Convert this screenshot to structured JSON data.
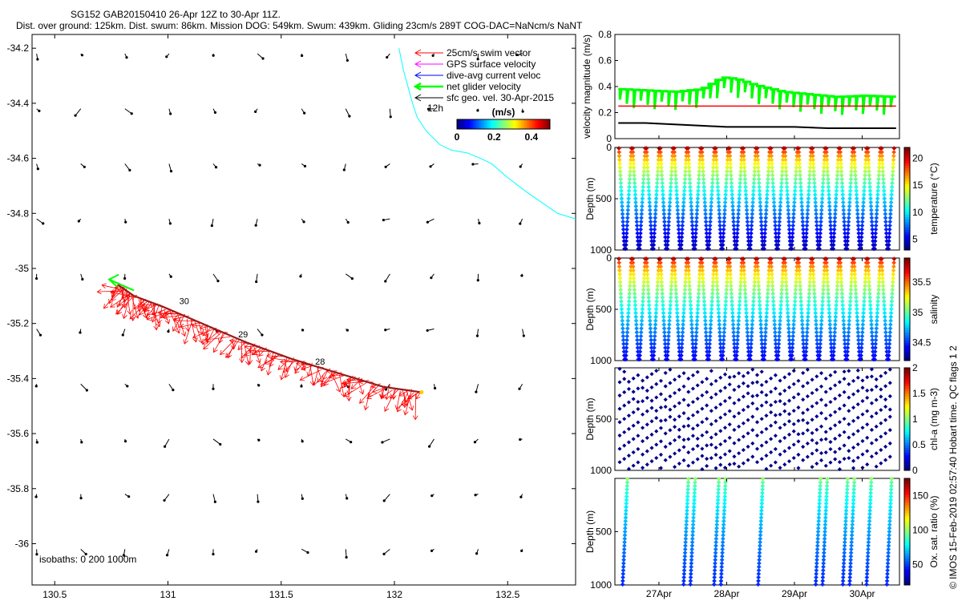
{
  "header": {
    "line1": "SG152 GAB20150410 26-Apr 12Z to 30-Apr 11Z.",
    "line2": "Dist. over ground: 125km. Dist. swum: 86km. Mission DOG: 549km. Swum: 439km. Gliding 23cm/s 289T COG-DAC=NaNcm/s NaNT"
  },
  "credit": "© IMOS 15-Feb-2019 02:57:40 Hobart time. QC flags 1  2",
  "colors": {
    "swim": "#ff0000",
    "gps": "#ff00ff",
    "dive_avg": "#0000ff",
    "net": "#00ff00",
    "sfc": "#000000",
    "coast": "#00ffff",
    "track": "#cc0000"
  },
  "chart_data": [
    {
      "type": "scatter",
      "name": "map",
      "xlim": [
        130.4,
        132.8
      ],
      "ylim": [
        -36.15,
        -34.15
      ],
      "xticks": [
        130.5,
        131,
        131.5,
        132,
        132.5
      ],
      "xtick_labels": [
        "130.5",
        "131",
        "131.5",
        "132",
        "132.5"
      ],
      "yticks": [
        -34.2,
        -34.4,
        -34.6,
        -34.8,
        -35,
        -35.2,
        -35.4,
        -35.6,
        -35.8,
        -36
      ],
      "ytick_labels": [
        "-34.2",
        "-34.4",
        "-34.6",
        "-34.8",
        "-35",
        "-35.2",
        "-35.4",
        "-35.6",
        "-35.8",
        "-36"
      ],
      "legend": [
        {
          "label": "25cm/s swim vector",
          "color_key": "swim"
        },
        {
          "label": "GPS surface velocity",
          "color_key": "gps"
        },
        {
          "label": "dive-avg current veloc",
          "color_key": "dive_avg"
        },
        {
          "label": "net glider velocity",
          "color_key": "net"
        },
        {
          "label": "sfc geo. vel. 30-Apr-2015",
          "color_key": "sfc"
        }
      ],
      "legend_position": "top-right",
      "legend_note": "12h",
      "colorbar": {
        "title": "(m/s)",
        "ticks": [
          0,
          0.2,
          0.4
        ],
        "tick_labels": [
          "0",
          "0.2",
          "0.4"
        ],
        "range": [
          0,
          0.5
        ]
      },
      "isobaths_label": "isobaths: 0   200  1000m",
      "day_labels": [
        "30",
        "29",
        "28"
      ],
      "track": {
        "lon": [
          132.12,
          131.95,
          131.75,
          131.55,
          131.35,
          131.15,
          130.98,
          130.85,
          130.78
        ],
        "lat": [
          -35.45,
          -35.43,
          -35.38,
          -35.33,
          -35.27,
          -35.2,
          -35.14,
          -35.1,
          -35.06
        ]
      },
      "net_vector": {
        "lon": [
          130.85,
          130.74
        ],
        "lat": [
          -35.08,
          -35.04
        ]
      },
      "coast": {
        "lon": [
          132.02,
          132.04,
          132.06,
          132.08,
          132.1,
          132.14,
          132.2,
          132.25,
          132.32,
          132.38,
          132.43,
          132.5,
          132.58,
          132.65,
          132.72,
          132.8
        ],
        "lat": [
          -34.2,
          -34.28,
          -34.34,
          -34.4,
          -34.45,
          -34.5,
          -34.55,
          -34.57,
          -34.58,
          -34.6,
          -34.62,
          -34.67,
          -34.72,
          -34.76,
          -34.8,
          -34.82
        ]
      }
    },
    {
      "type": "line",
      "name": "velocity",
      "ylabel": "velocity magnitude (m/s)",
      "xlim": [
        26.35,
        30.55
      ],
      "ylim": [
        0,
        0.8
      ],
      "yticks": [
        0,
        0.2,
        0.4,
        0.6,
        0.8
      ],
      "ytick_labels": [
        "0",
        "0.2",
        "0.4",
        "0.6",
        "0.8"
      ],
      "series": [
        {
          "name": "glider speed",
          "color_key": "net",
          "x": [
            26.4,
            26.8,
            27.2,
            27.6,
            27.9,
            28.1,
            28.4,
            28.8,
            29.2,
            29.6,
            30.0,
            30.5
          ],
          "values": [
            0.38,
            0.37,
            0.36,
            0.38,
            0.47,
            0.46,
            0.41,
            0.36,
            0.34,
            0.32,
            0.33,
            0.32
          ]
        },
        {
          "name": "swim",
          "color_key": "swim",
          "x": [
            26.4,
            30.5
          ],
          "values": [
            0.25,
            0.25
          ]
        },
        {
          "name": "current",
          "color_key": "sfc",
          "x": [
            26.4,
            26.8,
            27.2,
            27.6,
            28.0,
            28.5,
            29.0,
            29.5,
            30.0,
            30.5
          ],
          "values": [
            0.12,
            0.12,
            0.11,
            0.1,
            0.09,
            0.09,
            0.09,
            0.08,
            0.08,
            0.08
          ]
        }
      ]
    },
    {
      "type": "heatmap",
      "name": "temperature",
      "ylabel": "Depth (m)",
      "clabel": "temperature (°C)",
      "ylim": [
        0,
        1000
      ],
      "yticks": [
        0,
        500,
        1000
      ],
      "ytick_labels": [
        "0",
        "500",
        "1000"
      ],
      "crange": [
        3,
        22
      ],
      "cticks": [
        5,
        10,
        15,
        20
      ],
      "ctick_labels": [
        "5",
        "10",
        "15",
        "20"
      ],
      "surface_value": 21,
      "bottom_value": 4
    },
    {
      "type": "heatmap",
      "name": "salinity",
      "ylabel": "Depth (m)",
      "clabel": "salinity",
      "ylim": [
        0,
        1000
      ],
      "yticks": [
        0,
        500,
        1000
      ],
      "ytick_labels": [
        "0",
        "500",
        "1000"
      ],
      "crange": [
        34.2,
        35.9
      ],
      "cticks": [
        34.5,
        35,
        35.5
      ],
      "ctick_labels": [
        "34.5",
        "35",
        "35.5"
      ],
      "surface_value": 35.8,
      "bottom_value": 34.4
    },
    {
      "type": "scatter",
      "name": "chla",
      "ylabel": "Depth (m)",
      "clabel": "chl-a (mg m-3)",
      "ylim": [
        0,
        1000
      ],
      "yticks": [
        500,
        1000
      ],
      "ytick_labels": [
        "500",
        "1000"
      ],
      "crange": [
        0,
        2
      ],
      "cticks": [
        0,
        0.5,
        1,
        1.5,
        2
      ],
      "ctick_labels": [
        "0",
        "0.5",
        "1",
        "1.5",
        "2"
      ],
      "value": 0.02
    },
    {
      "type": "scatter",
      "name": "oxygen",
      "ylabel": "Depth (m)",
      "clabel": "Ox. sat. ratio (%)",
      "ylim": [
        0,
        1000
      ],
      "yticks": [
        500,
        1000
      ],
      "ytick_labels": [
        "500",
        "1000"
      ],
      "crange": [
        20,
        175
      ],
      "cticks": [
        50,
        100,
        150
      ],
      "ctick_labels": [
        "50",
        "100",
        "150"
      ],
      "surface_value": 100,
      "bottom_value": 45,
      "profile_days": [
        26.5,
        27.4,
        27.5,
        27.85,
        27.95,
        28.5,
        29.35,
        29.45,
        29.75,
        29.85,
        30.1,
        30.4
      ]
    }
  ],
  "time_axis": {
    "ticks": [
      27,
      28,
      29,
      30
    ],
    "tick_labels": [
      "27Apr",
      "28Apr",
      "29Apr",
      "30Apr"
    ]
  }
}
